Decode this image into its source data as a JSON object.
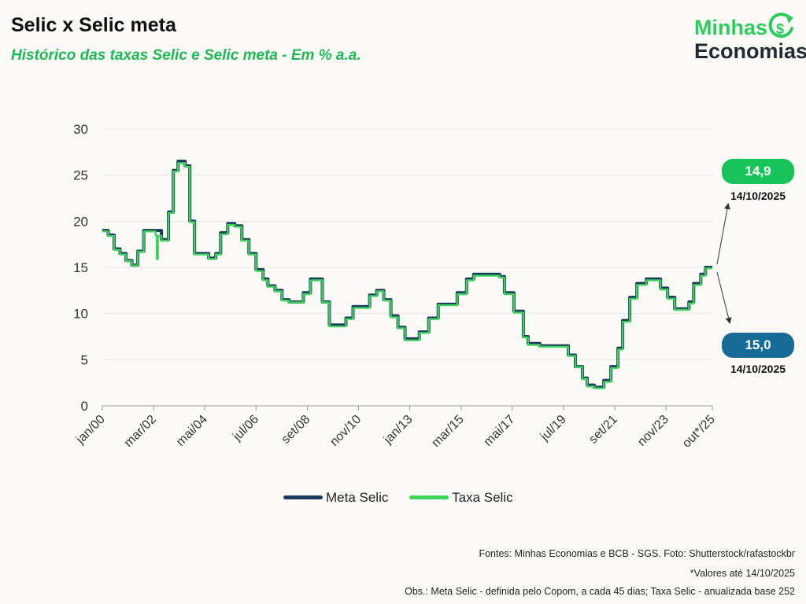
{
  "header": {
    "title": "Selic x Selic meta",
    "subtitle": "Histórico das taxas Selic e Selic meta - Em % a.a."
  },
  "logo": {
    "line1": "Minhas",
    "line2": "Economias",
    "icon": "dollar-cycle-icon"
  },
  "colors": {
    "meta": "#1b3a5c",
    "taxa": "#3ed35a",
    "green_badge": "#18c35a",
    "blue_badge": "#176b96",
    "accent": "#1db954"
  },
  "chart_data": {
    "type": "line",
    "title": "Selic x Selic meta",
    "ylim": [
      0,
      30
    ],
    "yticks": [
      0,
      5,
      10,
      15,
      20,
      25,
      30
    ],
    "xlim": [
      2000.0,
      2025.79
    ],
    "x_tick_labels": [
      "jan/00",
      "mar/02",
      "mai/04",
      "jul/06",
      "set/08",
      "nov/10",
      "jan/13",
      "mar/15",
      "mai/17",
      "jul/19",
      "set/21",
      "nov/23",
      "out*/25"
    ],
    "x_tick_positions": [
      2000.0,
      2002.17,
      2004.33,
      2006.5,
      2008.67,
      2010.83,
      2013.0,
      2015.17,
      2017.33,
      2019.5,
      2021.67,
      2023.83,
      2025.79
    ],
    "grid": true,
    "legend_position": "bottom-center",
    "series": [
      {
        "name": "Meta Selic",
        "x": [
          2000.0,
          2000.25,
          2000.5,
          2000.75,
          2001.0,
          2001.25,
          2001.5,
          2001.75,
          2002.0,
          2002.5,
          2002.8,
          2003.0,
          2003.2,
          2003.5,
          2003.7,
          2003.9,
          2004.0,
          2004.5,
          2004.8,
          2005.0,
          2005.3,
          2005.6,
          2005.9,
          2006.2,
          2006.5,
          2006.8,
          2007.0,
          2007.3,
          2007.6,
          2007.9,
          2008.2,
          2008.5,
          2008.8,
          2009.0,
          2009.3,
          2009.6,
          2010.0,
          2010.3,
          2010.6,
          2011.0,
          2011.3,
          2011.6,
          2011.9,
          2012.2,
          2012.5,
          2012.8,
          2013.0,
          2013.4,
          2013.8,
          2014.2,
          2014.6,
          2015.0,
          2015.4,
          2015.7,
          2016.0,
          2016.4,
          2016.8,
          2017.0,
          2017.4,
          2017.8,
          2018.0,
          2018.5,
          2019.0,
          2019.4,
          2019.7,
          2020.0,
          2020.3,
          2020.5,
          2020.8,
          2021.0,
          2021.2,
          2021.5,
          2021.8,
          2022.0,
          2022.3,
          2022.6,
          2023.0,
          2023.3,
          2023.6,
          2023.9,
          2024.2,
          2024.5,
          2024.8,
          2025.0,
          2025.3,
          2025.5,
          2025.79
        ],
        "values": [
          19.0,
          18.5,
          17.0,
          16.5,
          15.75,
          15.25,
          16.75,
          19.0,
          19.0,
          18.0,
          21.0,
          25.5,
          26.5,
          26.0,
          20.0,
          16.5,
          16.5,
          16.0,
          16.5,
          18.75,
          19.75,
          19.5,
          18.0,
          16.5,
          14.75,
          13.75,
          13.0,
          12.5,
          11.5,
          11.25,
          11.25,
          12.25,
          13.75,
          13.75,
          11.25,
          8.75,
          8.75,
          9.5,
          10.75,
          10.75,
          12.0,
          12.5,
          11.5,
          9.75,
          8.5,
          7.25,
          7.25,
          8.0,
          9.5,
          11.0,
          11.0,
          12.25,
          13.75,
          14.25,
          14.25,
          14.25,
          14.0,
          12.25,
          10.25,
          7.5,
          6.75,
          6.5,
          6.5,
          6.5,
          5.5,
          4.25,
          3.0,
          2.25,
          2.0,
          2.0,
          2.75,
          4.25,
          6.25,
          9.25,
          11.75,
          13.25,
          13.75,
          13.75,
          12.75,
          11.75,
          10.5,
          10.5,
          11.25,
          13.25,
          14.25,
          15.0,
          15.0
        ]
      },
      {
        "name": "Taxa Selic",
        "x": [
          2000.0,
          2000.25,
          2000.5,
          2000.75,
          2001.0,
          2001.25,
          2001.5,
          2001.75,
          2002.0,
          2002.25,
          2002.3,
          2002.35,
          2002.5,
          2002.8,
          2003.0,
          2003.2,
          2003.5,
          2003.7,
          2003.9,
          2004.0,
          2004.5,
          2004.8,
          2005.0,
          2005.3,
          2005.6,
          2005.9,
          2006.2,
          2006.5,
          2006.8,
          2007.0,
          2007.3,
          2007.6,
          2007.9,
          2008.2,
          2008.5,
          2008.8,
          2009.0,
          2009.3,
          2009.6,
          2010.0,
          2010.3,
          2010.6,
          2011.0,
          2011.3,
          2011.6,
          2011.9,
          2012.2,
          2012.5,
          2012.8,
          2013.0,
          2013.4,
          2013.8,
          2014.2,
          2014.6,
          2015.0,
          2015.4,
          2015.7,
          2016.0,
          2016.4,
          2016.8,
          2017.0,
          2017.4,
          2017.8,
          2018.0,
          2018.5,
          2019.0,
          2019.4,
          2019.7,
          2020.0,
          2020.3,
          2020.5,
          2020.8,
          2021.0,
          2021.2,
          2021.5,
          2021.8,
          2022.0,
          2022.3,
          2022.6,
          2023.0,
          2023.3,
          2023.6,
          2023.9,
          2024.2,
          2024.5,
          2024.8,
          2025.0,
          2025.3,
          2025.5,
          2025.79
        ],
        "values": [
          18.9,
          18.4,
          16.9,
          16.4,
          15.7,
          15.2,
          16.7,
          18.9,
          18.9,
          18.5,
          15.9,
          18.4,
          17.9,
          20.9,
          25.4,
          26.3,
          25.9,
          19.9,
          16.4,
          16.4,
          15.9,
          16.4,
          18.6,
          19.6,
          19.4,
          17.9,
          16.4,
          14.6,
          13.6,
          12.9,
          12.4,
          11.4,
          11.2,
          11.2,
          12.1,
          13.6,
          13.6,
          11.2,
          8.6,
          8.6,
          9.4,
          10.6,
          10.6,
          11.9,
          12.4,
          11.4,
          9.6,
          8.4,
          7.1,
          7.1,
          7.9,
          9.4,
          10.9,
          10.9,
          12.1,
          13.6,
          14.1,
          14.1,
          14.1,
          13.9,
          12.1,
          10.1,
          7.4,
          6.6,
          6.4,
          6.4,
          6.4,
          5.4,
          4.2,
          2.9,
          2.1,
          1.9,
          1.9,
          2.6,
          4.1,
          6.1,
          9.1,
          11.6,
          13.1,
          13.6,
          13.6,
          12.6,
          11.6,
          10.4,
          10.4,
          11.1,
          13.1,
          14.1,
          14.9,
          14.9
        ]
      }
    ],
    "annotations": [
      {
        "series": "Taxa Selic",
        "value": "14,9",
        "date": "14/10/2025"
      },
      {
        "series": "Meta Selic",
        "value": "15,0",
        "date": "14/10/2025"
      }
    ]
  },
  "footer": {
    "sources": "Fontes: Minhas Economias e BCB - SGS. Foto: Shutterstock/rafastockbr",
    "note_date": "*Valores até 14/10/2025",
    "obs": "Obs.: Meta Selic - definida pelo Copom, a cada 45 dias; Taxa Selic - anualizada base 252"
  }
}
